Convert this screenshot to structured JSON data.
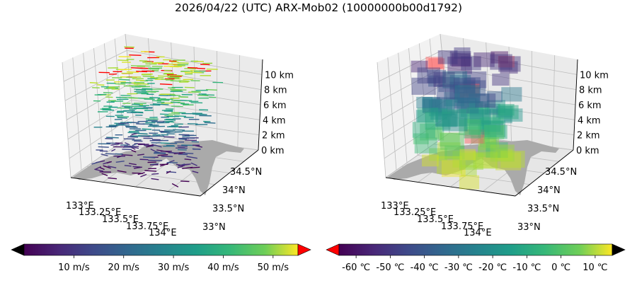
{
  "title": "2026/04/22 (UTC) ARX-Mob02 (10000000b00d1792)",
  "colors": {
    "land": "#aaaaaa",
    "pane": "#f2f2f2",
    "grid": "#bdbdbd",
    "over_wind": "#ff0000",
    "under_wind": "#000000",
    "over_temp": "#000000",
    "under_temp": "#ff0000"
  },
  "chart_data": [
    {
      "type": "3d-vector",
      "description_units": "wind speed",
      "x_ticks": [
        "133°E",
        "133.25°E",
        "133.5°E",
        "133.75°E",
        "134°E"
      ],
      "y_ticks": [
        "33°N",
        "33.5°N",
        "34°N",
        "34.5°N"
      ],
      "z_ticks": [
        "0 km",
        "2 km",
        "4 km",
        "6 km",
        "8 km",
        "10 km"
      ],
      "xlim": [
        133.0,
        134.0
      ],
      "ylim": [
        33.0,
        34.75
      ],
      "zlim": [
        0,
        12
      ],
      "colorbar": {
        "colormap": "viridis",
        "range": [
          0,
          55
        ],
        "ticks": [
          "10 m/s",
          "20 m/s",
          "30 m/s",
          "40 m/s",
          "50 m/s"
        ],
        "tick_values": [
          10,
          20,
          30,
          40,
          50
        ]
      }
    },
    {
      "type": "3d-voxel",
      "description_units": "temperature",
      "x_ticks": [
        "133°E",
        "133.25°E",
        "133.5°E",
        "133.75°E",
        "134°E"
      ],
      "y_ticks": [
        "33°N",
        "33.5°N",
        "34°N",
        "34.5°N"
      ],
      "z_ticks": [
        "0 km",
        "2 km",
        "4 km",
        "6 km",
        "8 km",
        "10 km"
      ],
      "xlim": [
        133.0,
        134.0
      ],
      "ylim": [
        33.0,
        34.75
      ],
      "zlim": [
        0,
        12
      ],
      "colorbar": {
        "colormap": "viridis",
        "range": [
          -65,
          15
        ],
        "ticks": [
          "-60 ℃",
          "-50 ℃",
          "-40 ℃",
          "-30 ℃",
          "-20 ℃",
          "-10 ℃",
          "0 ℃",
          "10 ℃"
        ],
        "tick_values": [
          -60,
          -50,
          -40,
          -30,
          -20,
          -10,
          0,
          10
        ]
      }
    }
  ]
}
